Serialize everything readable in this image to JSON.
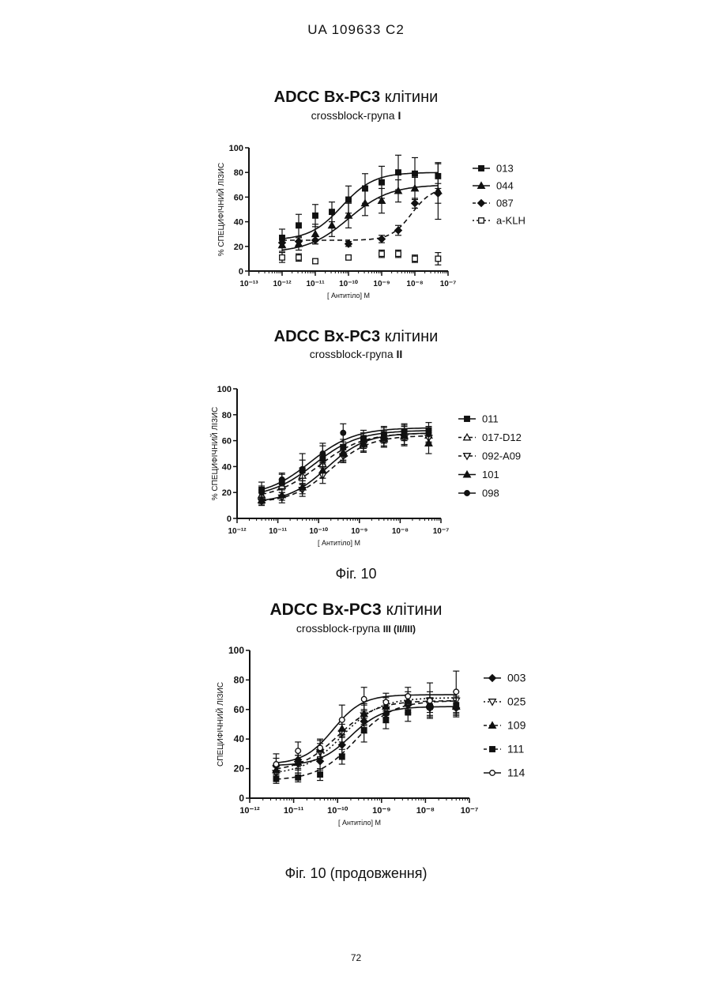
{
  "header": "UA   109633   C2",
  "page_number": "72",
  "figure_captions": [
    "Фіг. 10",
    "Фіг. 10 (продовження)"
  ],
  "chart_data": [
    {
      "type": "line",
      "title_bold": "ADCC Bx-PC3",
      "title_rest": "клітини",
      "subtitle": "crossblock-група",
      "subtitle_suffix": "I",
      "ylabel": "% СПЕЦИФІЧНИЙ ЛІЗИС",
      "xlabel": "[ Антитіло] М",
      "xscale": "log",
      "xlim_exp": [
        -13,
        -7
      ],
      "ylim": [
        0,
        100
      ],
      "x_ticks_exp": [
        -13,
        -12,
        -11,
        -10,
        -9,
        -8,
        -7
      ],
      "y_ticks": [
        0,
        20,
        40,
        60,
        80,
        100
      ],
      "legend_position": "right",
      "series": [
        {
          "name": "013",
          "marker": "square",
          "line": "solid",
          "fill": "filled",
          "x": [
            1e-12,
            3.16e-12,
            1e-11,
            3.16e-11,
            1e-10,
            3.16e-10,
            1e-09,
            3.16e-09,
            1e-08,
            5e-08
          ],
          "y": [
            27,
            37,
            45,
            48,
            58,
            67,
            72,
            80,
            79,
            77
          ],
          "err": [
            7,
            9,
            9,
            8,
            11,
            12,
            13,
            14,
            13,
            10
          ],
          "fit": {
            "bottom": 25,
            "top": 80,
            "logec50": -10.2,
            "hill": 0.9
          }
        },
        {
          "name": "044",
          "marker": "triangle",
          "line": "solid",
          "fill": "filled",
          "x": [
            1e-12,
            3.16e-12,
            1e-11,
            3.16e-11,
            1e-10,
            3.16e-10,
            1e-09,
            3.16e-09,
            1e-08,
            5e-08
          ],
          "y": [
            21,
            22,
            30,
            37,
            45,
            55,
            57,
            65,
            67,
            65
          ],
          "err": [
            5,
            5,
            8,
            9,
            10,
            10,
            10,
            9,
            9,
            23
          ],
          "fit": {
            "bottom": 15,
            "top": 70,
            "logec50": -10.0,
            "hill": 0.7
          }
        },
        {
          "name": "087",
          "marker": "diamond",
          "line": "dashed",
          "fill": "filled",
          "x": [
            1e-12,
            3.16e-12,
            1e-11,
            1e-10,
            1e-09,
            3.16e-09,
            1e-08,
            5e-08
          ],
          "y": [
            23,
            24,
            25,
            22,
            26,
            33,
            55,
            63
          ],
          "err": [
            3,
            3,
            3,
            2,
            3,
            4,
            4,
            8
          ],
          "fit": {
            "bottom": 25,
            "top": 68,
            "logec50": -8.1,
            "hill": 1.4
          }
        },
        {
          "name": "a-KLH",
          "marker": "square",
          "line": "dotted",
          "fill": "open",
          "x": [
            1e-12,
            3.16e-12,
            1e-11,
            1e-10,
            1e-09,
            3.16e-09,
            1e-08,
            5e-08
          ],
          "y": [
            11,
            11,
            8,
            11,
            14,
            14,
            10,
            10
          ],
          "err": [
            4,
            3,
            2,
            2,
            3,
            3,
            3,
            5
          ],
          "fit": null
        }
      ]
    },
    {
      "type": "line",
      "title_bold": "ADCC Bx-PC3",
      "title_rest": "клітини",
      "subtitle": "crossblock-група",
      "subtitle_suffix": "II",
      "ylabel": "% СПЕЦИФІЧНИЙ ЛІЗИС",
      "xlabel": "[ Антитіло] М",
      "xscale": "log",
      "xlim_exp": [
        -12,
        -7
      ],
      "ylim": [
        0,
        100
      ],
      "x_ticks_exp": [
        -12,
        -11,
        -10,
        -9,
        -8,
        -7
      ],
      "y_ticks": [
        0,
        20,
        40,
        60,
        80,
        100
      ],
      "legend_position": "right",
      "series": [
        {
          "name": "011",
          "marker": "square",
          "line": "solid",
          "fill": "filled",
          "x": [
            4e-12,
            1.26e-11,
            4e-11,
            1.26e-10,
            4e-10,
            1.26e-09,
            4e-09,
            1.26e-08,
            5e-08
          ],
          "y": [
            22,
            28,
            37,
            46,
            55,
            60,
            64,
            67,
            68
          ],
          "err": [
            6,
            6,
            8,
            10,
            6,
            6,
            6,
            6,
            6
          ],
          "fit": {
            "bottom": 17,
            "top": 70,
            "logec50": -10.2,
            "hill": 0.8
          }
        },
        {
          "name": "017-D12",
          "marker": "triangle",
          "line": "dashed",
          "fill": "open",
          "x": [
            4e-12,
            1.26e-11,
            4e-11,
            1.26e-10,
            4e-10,
            1.26e-09,
            4e-09,
            1.26e-08,
            5e-08
          ],
          "y": [
            18,
            25,
            33,
            42,
            51,
            57,
            61,
            63,
            64
          ],
          "err": [
            4,
            5,
            6,
            7,
            6,
            6,
            6,
            6,
            6
          ],
          "fit": {
            "bottom": 15,
            "top": 66,
            "logec50": -10.0,
            "hill": 0.8
          }
        },
        {
          "name": "092-A09",
          "marker": "triangle-down",
          "line": "dashed",
          "fill": "open",
          "x": [
            4e-12,
            1.26e-11,
            4e-11,
            1.26e-10,
            4e-10,
            1.26e-09,
            4e-09,
            1.26e-08,
            5e-08
          ],
          "y": [
            13,
            16,
            22,
            33,
            48,
            57,
            60,
            62,
            62
          ],
          "err": [
            3,
            4,
            5,
            6,
            5,
            6,
            5,
            6,
            6
          ],
          "fit": {
            "bottom": 12,
            "top": 64,
            "logec50": -9.7,
            "hill": 0.9
          }
        },
        {
          "name": "101",
          "marker": "triangle",
          "line": "solid",
          "fill": "filled",
          "x": [
            4e-12,
            1.26e-11,
            4e-11,
            1.26e-10,
            4e-10,
            1.26e-09,
            4e-09,
            1.26e-08,
            5e-08
          ],
          "y": [
            14,
            18,
            24,
            37,
            50,
            58,
            62,
            64,
            58
          ],
          "err": [
            3,
            4,
            5,
            6,
            6,
            6,
            6,
            7,
            8
          ],
          "fit": {
            "bottom": 12,
            "top": 66,
            "logec50": -9.8,
            "hill": 0.9
          }
        },
        {
          "name": "098",
          "marker": "circle",
          "line": "solid",
          "fill": "filled",
          "x": [
            4e-12,
            1.26e-11,
            4e-11,
            1.26e-10,
            4e-10,
            1.26e-09,
            4e-09,
            1.26e-08,
            5e-08
          ],
          "y": [
            20,
            30,
            38,
            50,
            66,
            62,
            65,
            66,
            65
          ],
          "err": [
            5,
            5,
            12,
            8,
            7,
            6,
            6,
            6,
            6
          ],
          "fit": {
            "bottom": 16,
            "top": 68,
            "logec50": -10.1,
            "hill": 0.8
          }
        }
      ]
    },
    {
      "type": "line",
      "title_bold": "ADCC Bx-PC3",
      "title_rest": "клітини",
      "subtitle": "crossblock-група",
      "subtitle_suffix": "III (II/III)",
      "ylabel": "СПЕЦИФІЧНИЙ ЛІЗИС",
      "xlabel": "[ Антитіло] М",
      "xscale": "log",
      "xlim_exp": [
        -12,
        -7
      ],
      "ylim": [
        0,
        100
      ],
      "x_ticks_exp": [
        -12,
        -11,
        -10,
        -9,
        -8,
        -7
      ],
      "y_ticks": [
        0,
        20,
        40,
        60,
        80,
        100
      ],
      "legend_position": "right",
      "series": [
        {
          "name": "003",
          "marker": "diamond",
          "line": "solid",
          "fill": "filled",
          "x": [
            4e-12,
            1.26e-11,
            4e-11,
            1.26e-10,
            4e-10,
            1.26e-09,
            4e-09,
            1.26e-08,
            5e-08
          ],
          "y": [
            22,
            26,
            25,
            36,
            52,
            57,
            63,
            61,
            61
          ],
          "err": [
            5,
            6,
            6,
            6,
            8,
            6,
            6,
            6,
            6
          ],
          "fit": {
            "bottom": 22,
            "top": 62,
            "logec50": -9.7,
            "hill": 1.2
          }
        },
        {
          "name": "025",
          "marker": "triangle-down",
          "line": "dotted",
          "fill": "open",
          "x": [
            4e-12,
            1.26e-11,
            4e-11,
            1.26e-10,
            4e-10,
            1.26e-09,
            4e-09,
            1.26e-08,
            5e-08
          ],
          "y": [
            17,
            23,
            31,
            44,
            56,
            60,
            64,
            66,
            66
          ],
          "err": [
            4,
            6,
            6,
            6,
            7,
            6,
            6,
            6,
            6
          ],
          "fit": {
            "bottom": 16,
            "top": 68,
            "logec50": -9.9,
            "hill": 1.0
          }
        },
        {
          "name": "109",
          "marker": "triangle",
          "line": "dashed",
          "fill": "filled",
          "x": [
            4e-12,
            1.26e-11,
            4e-11,
            1.26e-10,
            4e-10,
            1.26e-09,
            4e-09,
            1.26e-08,
            5e-08
          ],
          "y": [
            19,
            24,
            33,
            47,
            57,
            62,
            66,
            64,
            62
          ],
          "err": [
            4,
            5,
            6,
            6,
            7,
            6,
            6,
            6,
            6
          ],
          "fit": {
            "bottom": 18,
            "top": 66,
            "logec50": -10.0,
            "hill": 1.0
          }
        },
        {
          "name": "111",
          "marker": "square",
          "line": "dashed",
          "fill": "filled",
          "x": [
            4e-12,
            1.26e-11,
            4e-11,
            1.26e-10,
            4e-10,
            1.26e-09,
            4e-09,
            1.26e-08,
            5e-08
          ],
          "y": [
            13,
            14,
            16,
            28,
            46,
            53,
            58,
            62,
            63
          ],
          "err": [
            3,
            3,
            4,
            5,
            8,
            6,
            6,
            6,
            6
          ],
          "fit": {
            "bottom": 12,
            "top": 66,
            "logec50": -9.6,
            "hill": 1.0
          }
        },
        {
          "name": "114",
          "marker": "circle",
          "line": "solid",
          "fill": "open",
          "x": [
            4e-12,
            1.26e-11,
            4e-11,
            1.26e-10,
            4e-10,
            1.26e-09,
            4e-09,
            1.26e-08,
            5e-08
          ],
          "y": [
            23,
            32,
            34,
            53,
            67,
            65,
            69,
            66,
            72
          ],
          "err": [
            7,
            6,
            6,
            10,
            8,
            6,
            6,
            12,
            14
          ],
          "fit": {
            "bottom": 23,
            "top": 70,
            "logec50": -10.1,
            "hill": 1.3
          }
        }
      ]
    }
  ]
}
